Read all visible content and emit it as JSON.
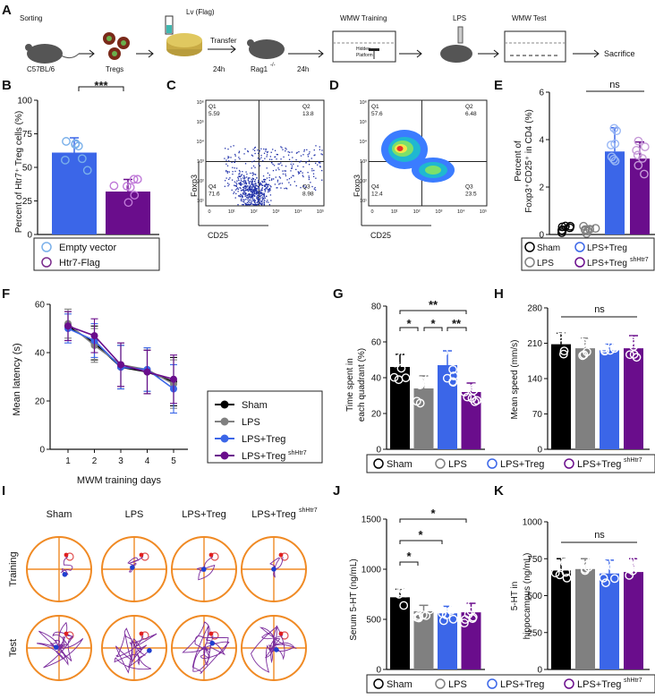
{
  "figure_labels": [
    "A",
    "B",
    "C",
    "D",
    "E",
    "F",
    "G",
    "H",
    "I",
    "J",
    "K"
  ],
  "panel_a": {
    "steps": [
      "Sorting",
      "C57BL/6",
      "Tregs",
      "Lv (Flag)",
      "Transfer",
      "24h",
      "Rag1",
      "-/-",
      "24h",
      "WMW Training",
      "Hidden",
      "Platform",
      "LPS",
      "WMW Test",
      "Sacrifice"
    ]
  },
  "panel_b": {
    "ylabel": "Percent of Htr7⁺ Treg cells (%)",
    "ticks": [
      "0",
      "25",
      "50",
      "75",
      "100"
    ],
    "sig": "***",
    "legend": [
      "Empty vector",
      "Htr7-Flag"
    ]
  },
  "panel_c": {
    "quadrant_labels": [
      "Q1",
      "5.59",
      "Q2",
      "13.8",
      "Q4",
      "71.6",
      "Q3",
      "8.98"
    ],
    "xlabel": "CD25",
    "ylabel": "Foxp3",
    "xticks": [
      "0",
      "10¹",
      "10²",
      "10³",
      "10⁴",
      "10⁵"
    ],
    "yticks": [
      "10¹",
      "10²",
      "10³",
      "10⁴",
      "10⁵",
      "10⁶"
    ]
  },
  "panel_d": {
    "quadrant_labels": [
      "Q1",
      "57.6",
      "Q2",
      "6.48",
      "Q4",
      "12.4",
      "Q3",
      "23.5"
    ],
    "xlabel": "CD25",
    "ylabel": "Foxp3",
    "xticks": [
      "0",
      "10¹",
      "10²",
      "10³",
      "10⁴",
      "10⁵"
    ],
    "yticks": [
      "10¹",
      "10²",
      "10³",
      "10⁴",
      "10⁵",
      "10⁶"
    ]
  },
  "panel_e": {
    "ylabel_line1": "Percent of",
    "ylabel_line2": "Foxp3⁺CD25⁺ in CD4 (%)",
    "ticks": [
      "0",
      "2",
      "4",
      "6"
    ],
    "sig": "ns",
    "legend": [
      "Sham",
      "LPS+Treg",
      "LPS",
      "LPS+Treg"
    ],
    "legend_sup": "shHtr7"
  },
  "panel_f": {
    "ylabel": "Mean latency (s)",
    "xlabel": "MWM training days",
    "xticks": [
      "1",
      "2",
      "3",
      "4",
      "5"
    ],
    "yticks": [
      "0",
      "20",
      "40",
      "60"
    ],
    "legend": [
      "Sham",
      "LPS",
      "LPS+Treg",
      "LPS+Treg"
    ],
    "legend_sup": "shHtr7"
  },
  "panel_g": {
    "ylabel_line1": "Time spent in",
    "ylabel_line2": "each quadrant (%)",
    "ticks": [
      "0",
      "20",
      "40",
      "60",
      "80"
    ],
    "sigs": [
      "*",
      "*",
      "**",
      "**",
      "*"
    ]
  },
  "panel_h": {
    "ylabel": "Mean speed (mm/s)",
    "ticks": [
      "0",
      "70",
      "140",
      "210",
      "280"
    ],
    "sig": "ns"
  },
  "legend_gh": [
    "Sham",
    "LPS",
    "LPS+Treg",
    "LPS+Treg"
  ],
  "legend_gh_sup": "shHtr7",
  "panel_i": {
    "groups": [
      "Sham",
      "LPS",
      "LPS+Treg",
      "LPS+Treg"
    ],
    "group_sup": "shHtr7",
    "rows": [
      "Training",
      "Test"
    ]
  },
  "panel_j": {
    "ylabel": "Serum 5-HT (ng/mL)",
    "ticks": [
      "0",
      "500",
      "1000",
      "1500"
    ],
    "sigs": [
      "*",
      "*",
      "*"
    ]
  },
  "panel_k": {
    "ylabel_line1": "5-HT in",
    "ylabel_line2": "hippocampus (ng/mL)",
    "ticks": [
      "0",
      "250",
      "500",
      "750",
      "1000"
    ],
    "sig": "ns"
  },
  "legend_jk": [
    "Sham",
    "LPS",
    "LPS+Treg",
    "LPS+Treg"
  ],
  "legend_jk_sup": "shHtr7",
  "colors": {
    "sham": "#000000",
    "lps": "#808080",
    "treg": "#3b66e8",
    "sh": "#6a0d8c",
    "flow_blue": "#2233aa"
  },
  "chart_data": [
    {
      "id": "B",
      "type": "bar",
      "categories": [
        "Empty vector",
        "Htr7-Flag"
      ],
      "values": [
        61,
        32
      ],
      "errors": [
        11,
        9
      ],
      "ylim": [
        0,
        100
      ],
      "ylabel": "Percent of Htr7+ Treg cells (%)"
    },
    {
      "id": "E",
      "type": "bar",
      "categories": [
        "Sham",
        "LPS",
        "LPS+Treg",
        "LPS+Treg shHtr7"
      ],
      "values": [
        0.2,
        0.2,
        3.5,
        3.2
      ],
      "errors": [
        0.15,
        0.15,
        1.0,
        0.7
      ],
      "ylim": [
        0,
        6
      ],
      "ylabel": "Percent of Foxp3+CD25+ in CD4 (%)"
    },
    {
      "id": "F",
      "type": "line",
      "x": [
        1,
        2,
        3,
        4,
        5
      ],
      "ylim": [
        0,
        60
      ],
      "series": [
        {
          "name": "Sham",
          "values": [
            51,
            44,
            34,
            32,
            28
          ]
        },
        {
          "name": "LPS",
          "values": [
            52,
            43,
            35,
            33,
            27
          ]
        },
        {
          "name": "LPS+Treg",
          "values": [
            50,
            45,
            34,
            33,
            25
          ]
        },
        {
          "name": "LPS+Treg shHtr7",
          "values": [
            51,
            47,
            35,
            32,
            29
          ]
        }
      ]
    },
    {
      "id": "G",
      "type": "bar",
      "categories": [
        "Sham",
        "LPS",
        "LPS+Treg",
        "LPS+Treg shHtr7"
      ],
      "values": [
        46,
        34,
        47,
        32
      ],
      "errors": [
        7,
        7,
        8,
        5
      ],
      "ylim": [
        0,
        80
      ],
      "ylabel": "Time spent in each quadrant (%)"
    },
    {
      "id": "H",
      "type": "bar",
      "categories": [
        "Sham",
        "LPS",
        "LPS+Treg",
        "LPS+Treg shHtr7"
      ],
      "values": [
        208,
        200,
        196,
        200
      ],
      "errors": [
        22,
        20,
        12,
        25
      ],
      "ylim": [
        0,
        280
      ],
      "ylabel": "Mean speed (mm/s)"
    },
    {
      "id": "J",
      "type": "bar",
      "categories": [
        "Sham",
        "LPS",
        "LPS+Treg",
        "LPS+Treg shHtr7"
      ],
      "values": [
        720,
        580,
        560,
        570
      ],
      "errors": [
        80,
        60,
        70,
        90
      ],
      "ylim": [
        0,
        1500
      ],
      "ylabel": "Serum 5-HT (ng/mL)"
    },
    {
      "id": "K",
      "type": "bar",
      "categories": [
        "Sham",
        "LPS",
        "LPS+Treg",
        "LPS+Treg shHtr7"
      ],
      "values": [
        670,
        680,
        650,
        660
      ],
      "errors": [
        80,
        70,
        90,
        90
      ],
      "ylim": [
        0,
        1000
      ],
      "ylabel": "5-HT in hippocampus (ng/mL)"
    }
  ]
}
